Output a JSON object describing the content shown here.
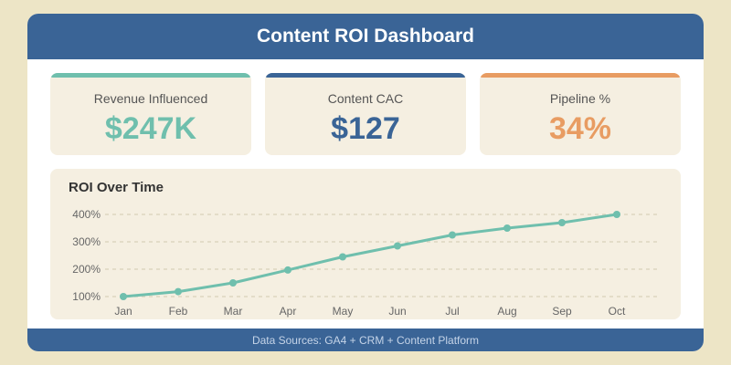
{
  "header": {
    "title": "Content ROI Dashboard"
  },
  "kpis": [
    {
      "label": "Revenue Influenced",
      "value": "$247K",
      "color": "#6fbfad"
    },
    {
      "label": "Content CAC",
      "value": "$127",
      "color": "#3a6496"
    },
    {
      "label": "Pipeline %",
      "value": "34%",
      "color": "#e89c62"
    }
  ],
  "chart_data": {
    "type": "line",
    "title": "ROI Over Time",
    "categories": [
      "Jan",
      "Feb",
      "Mar",
      "Apr",
      "May",
      "Jun",
      "Jul",
      "Aug",
      "Sep",
      "Oct"
    ],
    "values": [
      100,
      118,
      150,
      197,
      245,
      285,
      325,
      350,
      370,
      400
    ],
    "yticks": [
      "100%",
      "200%",
      "300%",
      "400%"
    ],
    "ylim": [
      100,
      400
    ],
    "grid": true,
    "color": "#6fbfad"
  },
  "footer": {
    "text": "Data Sources: GA4 + CRM + Content Platform"
  }
}
